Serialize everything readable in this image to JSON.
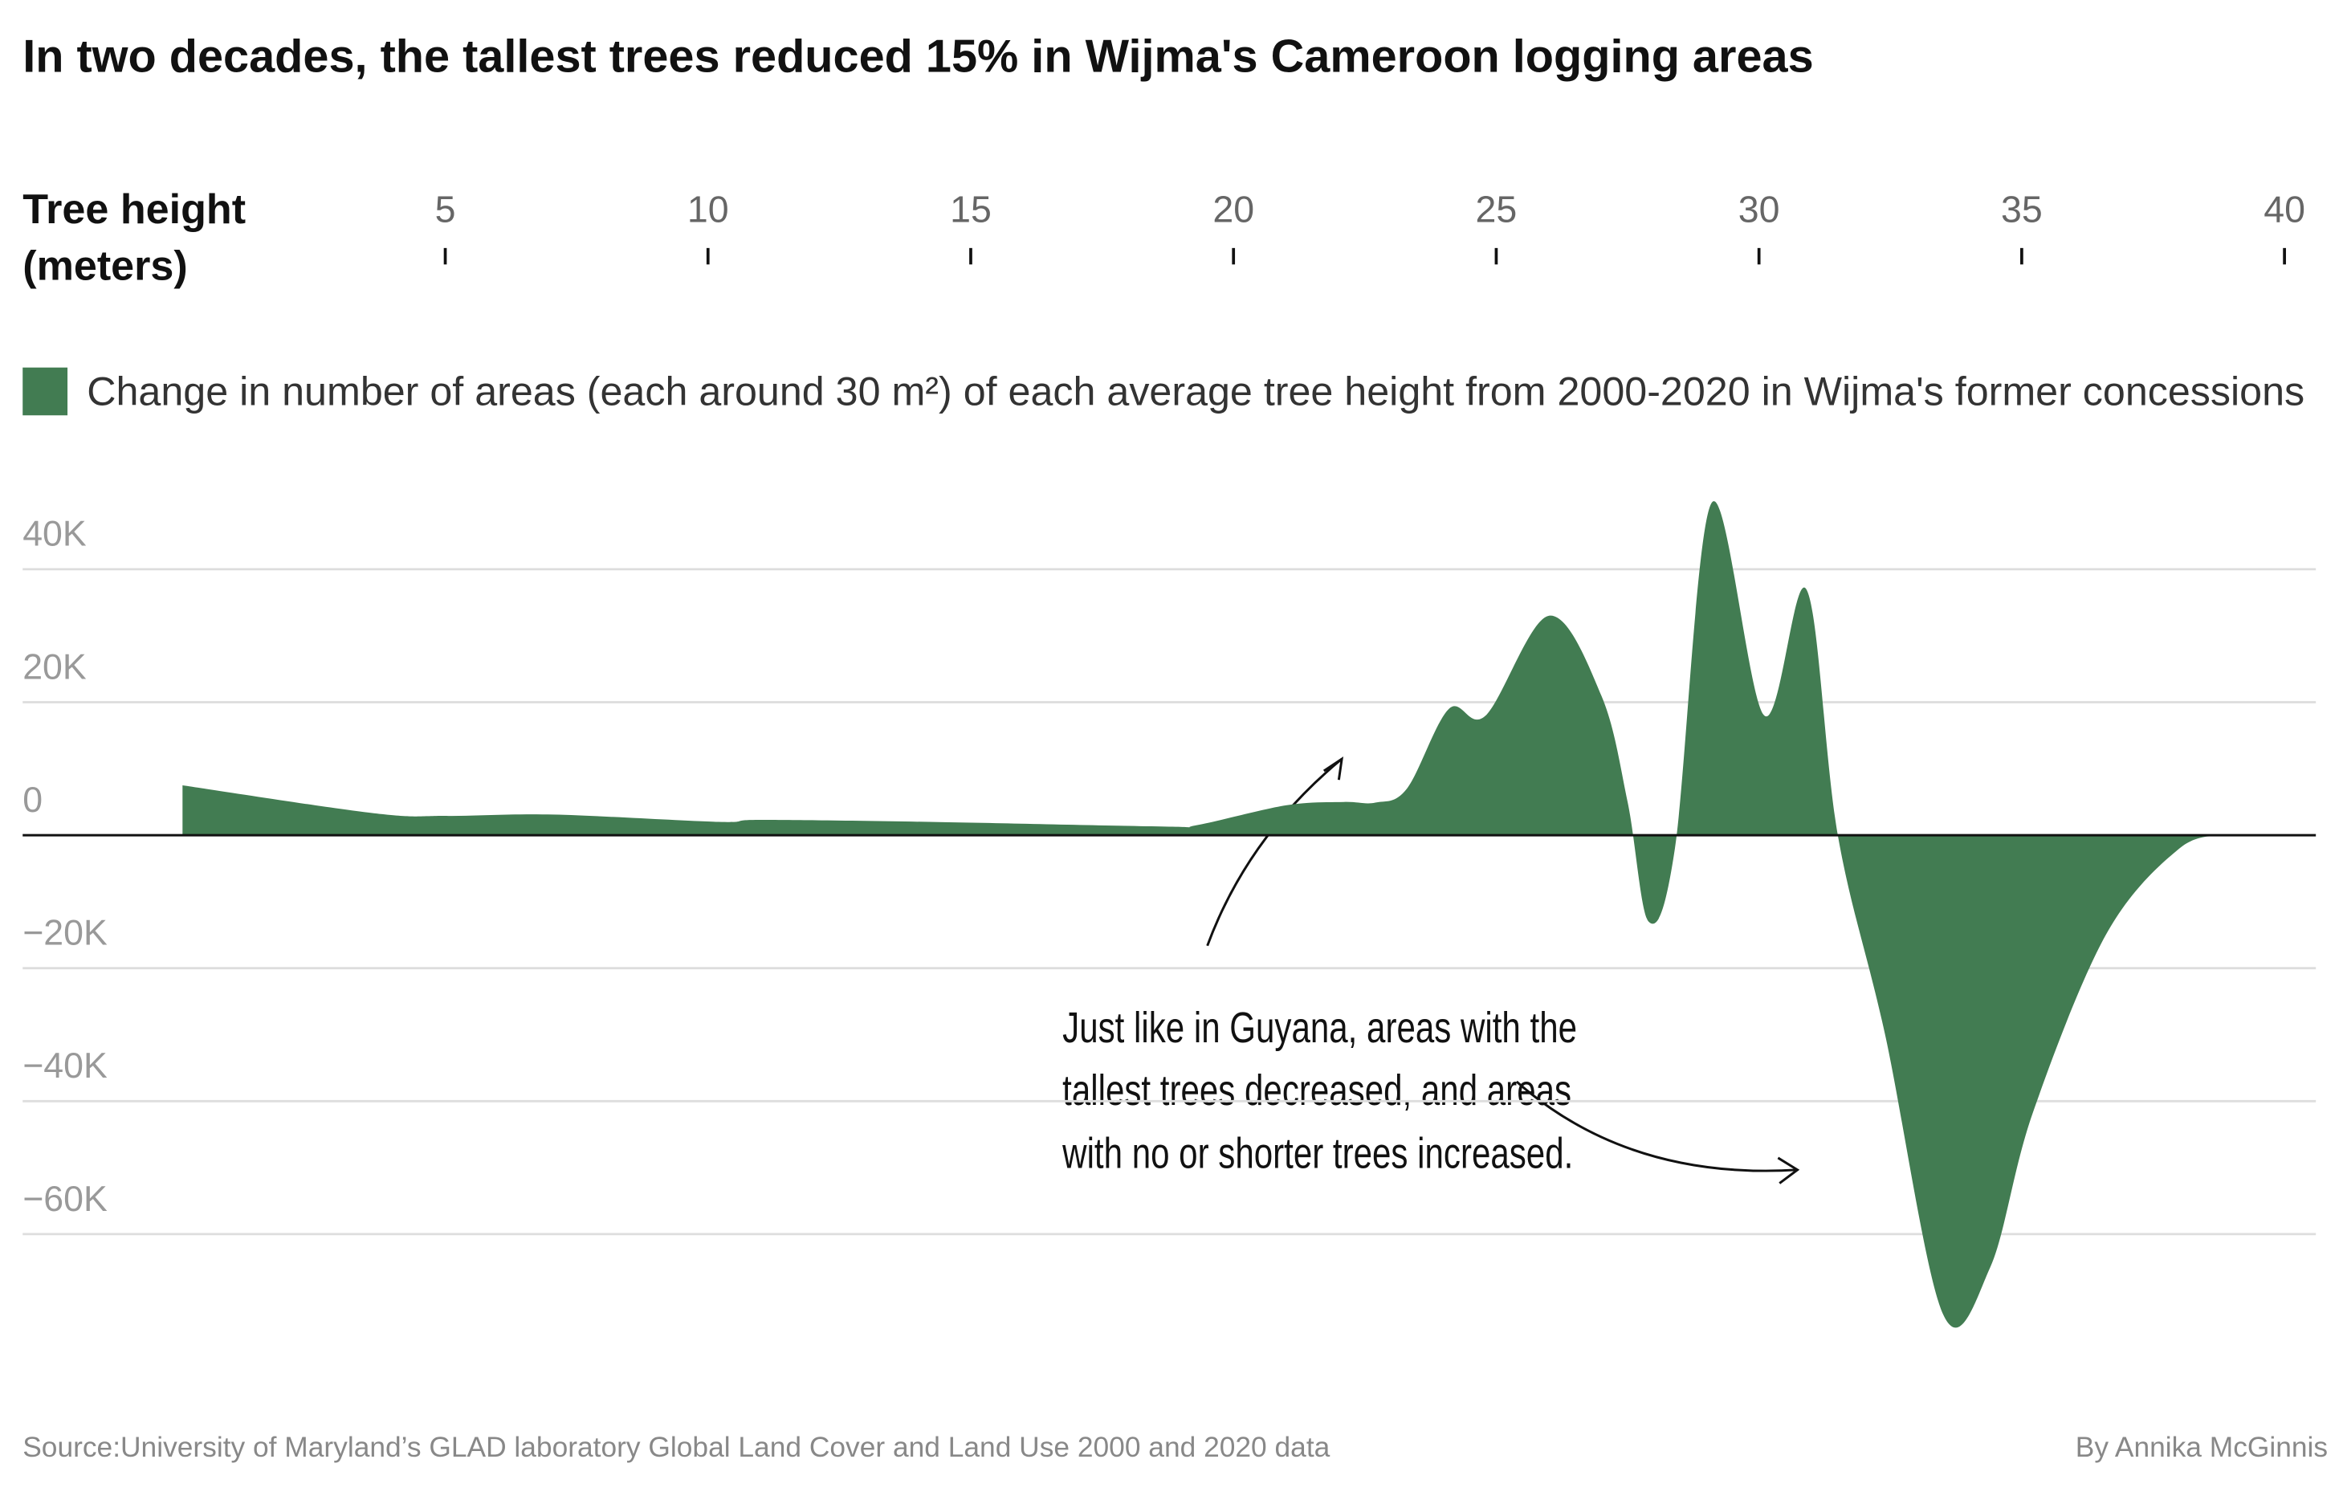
{
  "chart_data": {
    "type": "area",
    "title": "In two decades, the tallest trees reduced 15% in Wijma's Cameroon logging areas",
    "x_label": [
      "Tree height",
      "(meters)"
    ],
    "xlim": [
      0,
      40
    ],
    "xticks": [
      5,
      10,
      15,
      20,
      25,
      30,
      35,
      40
    ],
    "ylim": [
      -77000,
      52000
    ],
    "yticks": [
      {
        "value": -60000,
        "label": "−60K"
      },
      {
        "value": -40000,
        "label": "−40K"
      },
      {
        "value": -20000,
        "label": "−20K"
      },
      0,
      {
        "value": 20000,
        "label": "20K"
      },
      {
        "value": 40000,
        "label": "40K"
      }
    ],
    "grid": true,
    "x": [
      0,
      3.64,
      5.06,
      7.05,
      10.2,
      11,
      14.2,
      18.7,
      19.3,
      21,
      22.1,
      22.7,
      23.3,
      24.1,
      24.8,
      26,
      27,
      27.5,
      27.9,
      28.4,
      29.1,
      30.1,
      30.9,
      31.5,
      32.4,
      33.5,
      34.4,
      35.2,
      36.6,
      38,
      38.9
    ],
    "series": [
      {
        "name": "Change in number of areas (each around 30 m²) of each average tree height from 2000-2020 in Wijma's former concessions",
        "color": "#427c52",
        "values": [
          7500,
          3300,
          2900,
          3100,
          2000,
          2300,
          2000,
          1300,
          1500,
          4500,
          5000,
          4900,
          7000,
          19000,
          18000,
          33000,
          21000,
          5000,
          -13000,
          -2000,
          50000,
          18000,
          37000,
          0,
          -30000,
          -72000,
          -65000,
          -42000,
          -15000,
          -2000,
          0
        ]
      }
    ],
    "annotation": [
      "Just like in Guyana, areas with the",
      "tallest trees decreased, and areas",
      "with no or shorter trees increased."
    ],
    "source": "Source:University of Maryland’s GLAD laboratory Global Land Cover and Land Use 2000 and 2020 data",
    "credit": "By Annika McGinnis"
  }
}
